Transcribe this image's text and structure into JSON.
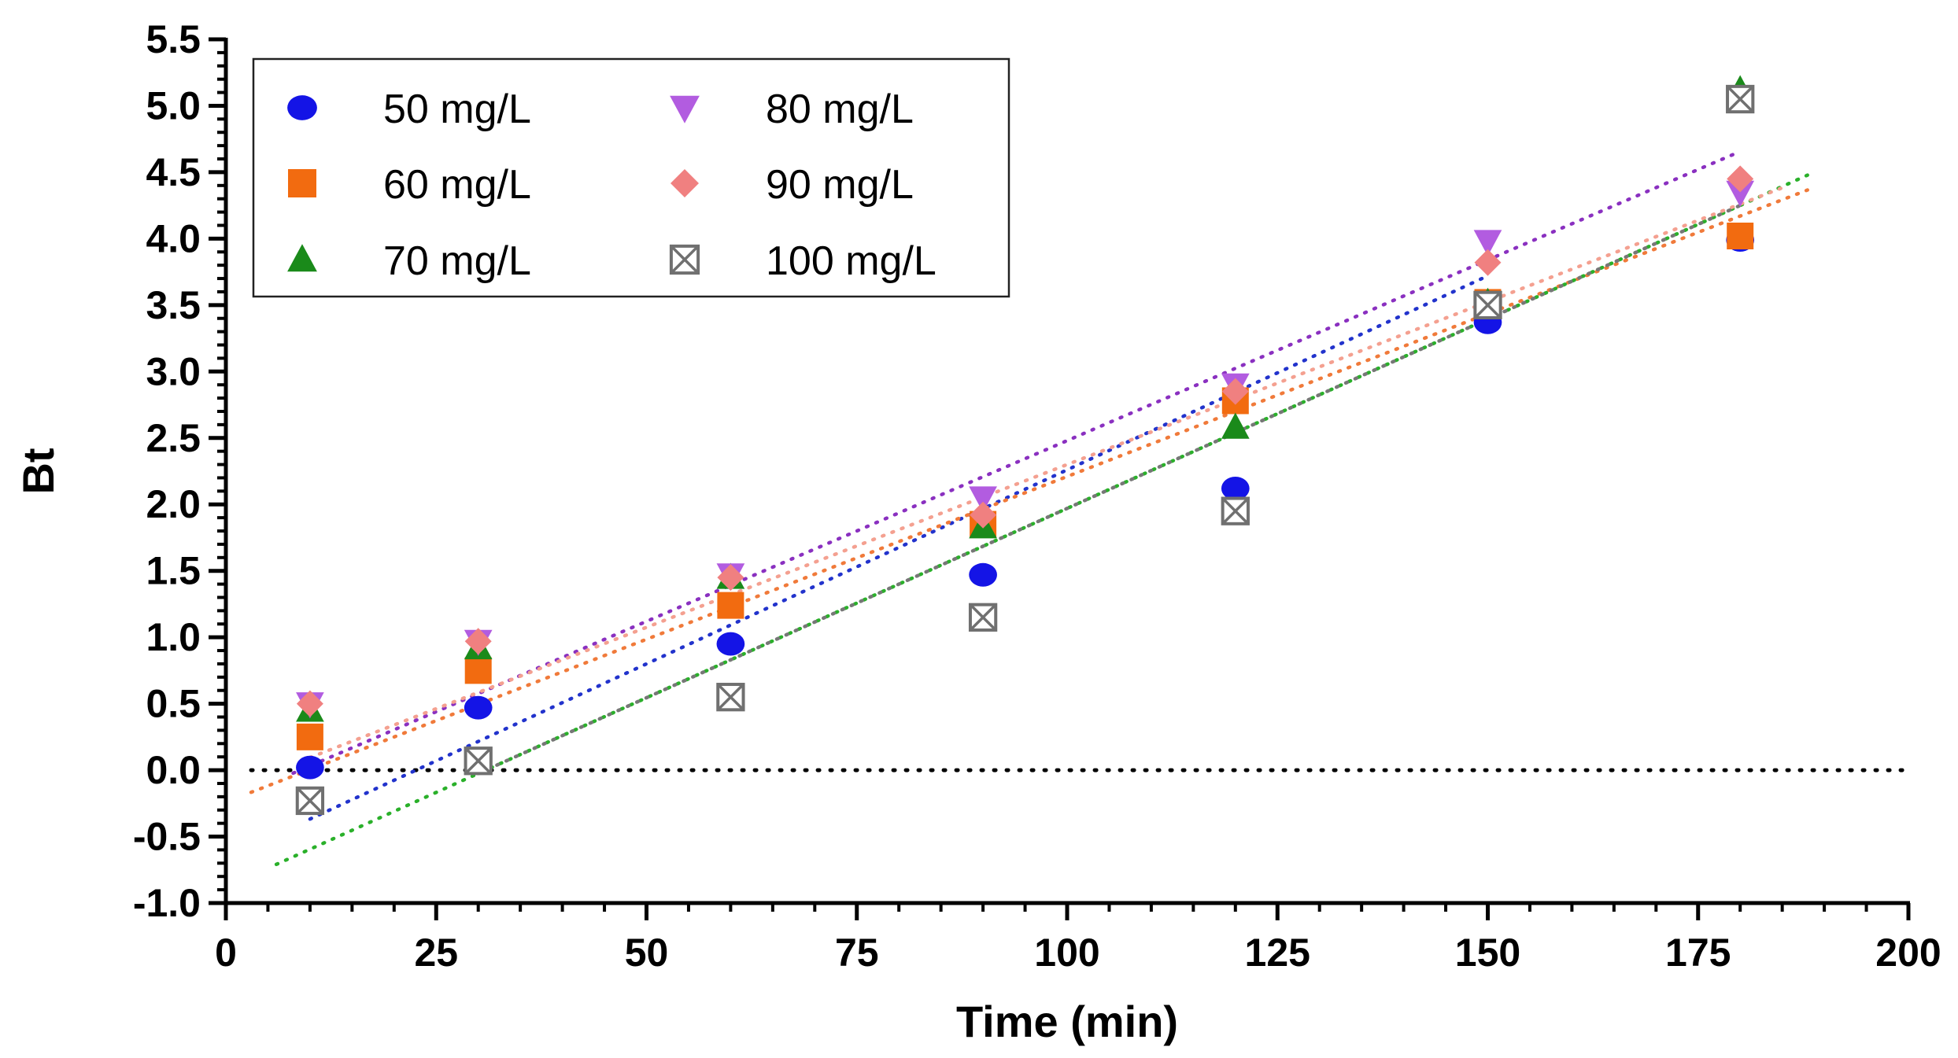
{
  "chart_data": {
    "type": "scatter",
    "title": "",
    "xlabel": "Time (min)",
    "ylabel": "Bt",
    "xlim": [
      0,
      200
    ],
    "ylim": [
      -1.0,
      5.5
    ],
    "xticks": [
      0,
      25,
      50,
      75,
      100,
      125,
      150,
      175,
      200
    ],
    "xtick_labels": [
      "0",
      "25",
      "50",
      "75",
      "100",
      "125",
      "150",
      "175",
      "200"
    ],
    "yticks": [
      -1.0,
      -0.5,
      0.0,
      0.5,
      1.0,
      1.5,
      2.0,
      2.5,
      3.0,
      3.5,
      4.0,
      4.5,
      5.0,
      5.5
    ],
    "ytick_labels": [
      "-1.0",
      "-0.5",
      "0.0",
      "0.5",
      "1.0",
      "1.5",
      "2.0",
      "2.5",
      "3.0",
      "3.5",
      "4.0",
      "4.5",
      "5.0",
      "5.5"
    ],
    "grid": false,
    "legend_position": "top-left",
    "zero_line": {
      "y": 0,
      "style": "dotted",
      "color": "#000000"
    },
    "x": [
      10,
      30,
      60,
      90,
      120,
      150,
      180
    ],
    "series": [
      {
        "name": "50 mg/L",
        "marker": "circle",
        "color": "#1414e6",
        "values": [
          0.02,
          0.47,
          0.95,
          1.47,
          2.12,
          3.37,
          3.99
        ],
        "trendline": {
          "x_range": [
            10,
            150
          ],
          "slope": 0.0292,
          "intercept": -0.66,
          "color": "#2233cc"
        }
      },
      {
        "name": "60 mg/L",
        "marker": "square",
        "color": "#f26b10",
        "values": [
          0.25,
          0.75,
          1.24,
          1.85,
          2.78,
          3.52,
          4.02
        ],
        "trendline": {
          "x_range": [
            3,
            188
          ],
          "slope": 0.0245,
          "intercept": -0.24,
          "color": "#f07a3a"
        }
      },
      {
        "name": "70 mg/L",
        "marker": "triangle-up",
        "color": "#1a8a1a",
        "values": [
          0.45,
          0.92,
          1.45,
          1.83,
          2.58,
          3.52,
          5.12
        ],
        "trendline": {
          "x_range": [
            6,
            188
          ],
          "slope": 0.0285,
          "intercept": -0.88,
          "color": "#2ab02a"
        }
      },
      {
        "name": "80 mg/L",
        "marker": "triangle-down",
        "color": "#b25ce0",
        "values": [
          0.5,
          0.97,
          1.47,
          2.05,
          2.9,
          3.98,
          4.35
        ],
        "trendline": {
          "x_range": [
            8,
            180
          ],
          "slope": 0.0272,
          "intercept": -0.24,
          "color": "#8a30c0"
        }
      },
      {
        "name": "90 mg/L",
        "marker": "diamond",
        "color": "#f08080",
        "values": [
          0.5,
          0.97,
          1.45,
          1.92,
          2.85,
          3.82,
          4.45
        ],
        "trendline": {
          "x_range": [
            10,
            185
          ],
          "slope": 0.0245,
          "intercept": -0.15,
          "color": "#f4a090"
        }
      },
      {
        "name": "100 mg/L",
        "marker": "boxed-x",
        "color": "#707070",
        "values": [
          -0.23,
          0.07,
          0.55,
          1.15,
          1.95,
          3.5,
          5.05
        ],
        "trendline": {
          "x_range": [
            30,
            180
          ],
          "slope": 0.0285,
          "intercept": -0.88,
          "color": "#777777"
        }
      }
    ]
  }
}
